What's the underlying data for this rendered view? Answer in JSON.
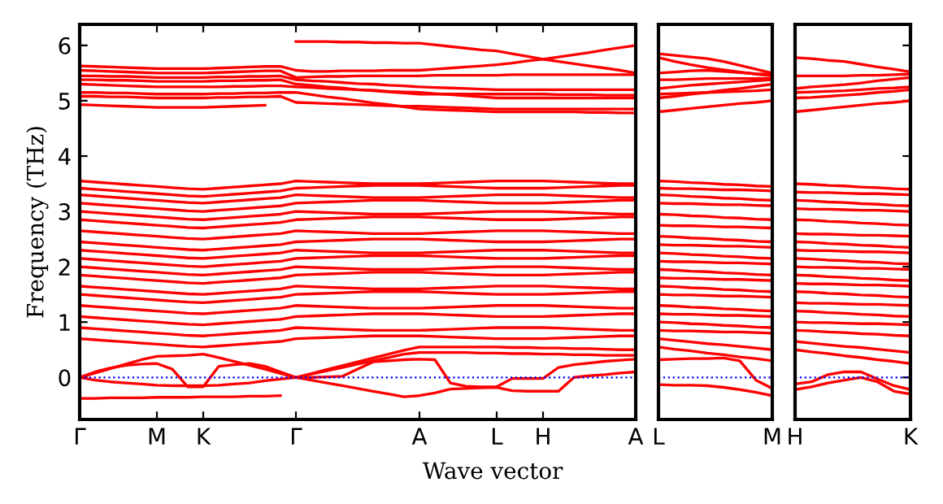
{
  "chart_data": [
    {
      "type": "line",
      "ylabel": "Frequency (THz)",
      "xlabel": "Wave vector",
      "ylim": [
        -0.76,
        6.38
      ],
      "categories": [
        "Γ",
        null,
        null,
        null,
        null,
        "M",
        null,
        null,
        "K",
        null,
        null,
        null,
        null,
        null,
        "Γ",
        null,
        null,
        null,
        null,
        null,
        null,
        null,
        "A",
        null,
        null,
        null,
        null,
        "L",
        null,
        null,
        "H",
        null,
        null,
        null,
        null,
        null,
        "A"
      ],
      "yticks": [
        0,
        1,
        2,
        3,
        4,
        5,
        6
      ],
      "grid": false,
      "legend": false,
      "marker": "none",
      "line_style": "solid",
      "ref_lines": [
        {
          "axis": "y",
          "value": 0,
          "color": "#0000ff",
          "line_style": "dotted"
        }
      ],
      "series": [
        {
          "color": "#ff0000",
          "values": [
            null,
            null,
            null,
            null,
            null,
            null,
            null,
            null,
            null,
            null,
            null,
            null,
            null,
            null,
            6.07,
            6.07,
            6.07,
            6.06,
            6.06,
            6.05,
            6.05,
            6.04,
            6.04,
            6.01,
            5.98,
            5.95,
            5.92,
            5.9,
            5.85,
            5.8,
            5.75,
            5.71,
            5.67,
            5.63,
            5.59,
            5.55,
            5.5
          ]
        },
        {
          "color": "#ff0000",
          "values": [
            5.63,
            5.62,
            5.61,
            5.6,
            5.59,
            5.58,
            5.58,
            5.58,
            5.58,
            5.59,
            5.6,
            5.61,
            5.62,
            5.62,
            5.55,
            5.53,
            5.53,
            5.54,
            5.54,
            5.54,
            5.55,
            5.55,
            5.55,
            5.57,
            5.59,
            5.61,
            5.63,
            5.65,
            5.68,
            5.72,
            5.75,
            5.79,
            5.83,
            5.87,
            5.92,
            5.96,
            6.0
          ]
        },
        {
          "color": "#ff0000",
          "values": [
            5.55,
            5.54,
            5.53,
            5.52,
            5.51,
            5.5,
            5.5,
            5.5,
            5.5,
            5.51,
            5.52,
            5.53,
            5.54,
            5.54,
            5.42,
            5.43,
            5.44,
            5.44,
            5.45,
            5.45,
            5.45,
            5.45,
            5.45,
            5.46,
            5.46,
            5.46,
            5.46,
            5.46,
            5.47,
            5.47,
            5.47,
            5.47,
            5.47,
            5.47,
            5.47,
            5.47,
            5.47
          ]
        },
        {
          "color": "#ff0000",
          "values": [
            5.45,
            5.45,
            5.44,
            5.44,
            5.43,
            5.42,
            5.42,
            5.42,
            5.42,
            5.43,
            5.43,
            5.44,
            5.44,
            5.45,
            5.38,
            5.36,
            5.35,
            5.33,
            5.31,
            5.3,
            5.28,
            5.27,
            5.25,
            5.24,
            5.23,
            5.22,
            5.21,
            5.2,
            5.2,
            5.2,
            5.2,
            5.2,
            5.2,
            5.2,
            5.2,
            5.2,
            5.2
          ]
        },
        {
          "color": "#ff0000",
          "values": [
            5.38,
            5.38,
            5.37,
            5.37,
            5.36,
            5.35,
            5.35,
            5.35,
            5.35,
            5.36,
            5.36,
            5.37,
            5.37,
            5.38,
            5.3,
            5.28,
            5.25,
            5.23,
            5.2,
            5.18,
            5.16,
            5.14,
            5.12,
            5.12,
            5.12,
            5.12,
            5.12,
            5.12,
            5.12,
            5.12,
            5.12,
            5.11,
            5.11,
            5.11,
            5.1,
            5.1,
            5.1
          ]
        },
        {
          "color": "#ff0000",
          "values": [
            5.3,
            5.29,
            5.28,
            5.27,
            5.26,
            5.25,
            5.25,
            5.25,
            5.25,
            5.25,
            5.26,
            5.26,
            5.27,
            5.27,
            5.25,
            5.24,
            5.22,
            5.21,
            5.2,
            5.19,
            5.17,
            5.16,
            5.15,
            5.13,
            5.11,
            5.09,
            5.07,
            5.05,
            5.05,
            5.05,
            5.05,
            5.05,
            5.05,
            5.05,
            5.05,
            5.05,
            5.05
          ]
        },
        {
          "color": "#ff0000",
          "values": [
            5.15,
            5.15,
            5.14,
            5.14,
            5.13,
            5.12,
            5.12,
            5.12,
            5.12,
            5.13,
            5.13,
            5.14,
            5.14,
            5.15,
            5.15,
            5.11,
            5.07,
            5.04,
            5.0,
            4.96,
            4.93,
            4.89,
            4.85,
            4.84,
            4.83,
            4.82,
            4.81,
            4.8,
            4.8,
            4.8,
            4.8,
            4.8,
            4.8,
            4.79,
            4.79,
            4.78,
            4.78
          ]
        },
        {
          "color": "#ff0000",
          "values": [
            5.08,
            5.08,
            5.07,
            5.07,
            5.06,
            5.05,
            5.05,
            5.05,
            5.05,
            5.06,
            5.06,
            5.07,
            5.07,
            5.08,
            4.97,
            4.96,
            4.95,
            4.94,
            4.93,
            4.92,
            4.91,
            4.9,
            4.9,
            4.89,
            4.88,
            4.87,
            4.86,
            4.85,
            4.85,
            4.85,
            4.85,
            4.85,
            4.85,
            4.85,
            4.85,
            4.85,
            4.85
          ]
        },
        {
          "color": "#ff0000",
          "values": [
            4.93,
            4.92,
            4.91,
            4.9,
            4.89,
            4.88,
            4.88,
            4.88,
            4.88,
            4.89,
            4.9,
            4.91,
            4.92,
            null,
            null,
            null,
            null,
            null,
            null,
            null,
            null,
            null,
            null,
            null,
            null,
            null,
            null,
            null,
            null,
            null,
            null,
            null,
            null,
            null,
            null,
            null,
            null
          ]
        },
        {
          "color": "#ff0000",
          "values": [
            3.55,
            3.53,
            3.51,
            3.49,
            3.47,
            3.45,
            3.43,
            3.41,
            3.4,
            3.42,
            3.44,
            3.46,
            3.48,
            3.5,
            3.55,
            3.54,
            3.53,
            3.52,
            3.51,
            3.5,
            3.5,
            3.5,
            3.5,
            3.51,
            3.52,
            3.53,
            3.54,
            3.55,
            3.55,
            3.55,
            3.55,
            3.54,
            3.53,
            3.52,
            3.51,
            3.5,
            3.5
          ]
        },
        {
          "color": "#ff0000",
          "values": [
            3.42,
            3.4,
            3.38,
            3.36,
            3.34,
            3.32,
            3.3,
            3.28,
            3.27,
            3.29,
            3.31,
            3.33,
            3.35,
            3.37,
            3.42,
            3.43,
            3.44,
            3.45,
            3.46,
            3.47,
            3.47,
            3.47,
            3.47,
            3.46,
            3.45,
            3.44,
            3.43,
            3.42,
            3.42,
            3.42,
            3.42,
            3.43,
            3.44,
            3.45,
            3.46,
            3.47,
            3.47
          ]
        },
        {
          "color": "#ff0000",
          "values": [
            3.3,
            3.28,
            3.26,
            3.24,
            3.22,
            3.2,
            3.18,
            3.16,
            3.15,
            3.17,
            3.19,
            3.21,
            3.23,
            3.25,
            3.3,
            3.29,
            3.28,
            3.27,
            3.26,
            3.25,
            3.25,
            3.25,
            3.25,
            3.26,
            3.27,
            3.28,
            3.29,
            3.3,
            3.3,
            3.3,
            3.3,
            3.29,
            3.28,
            3.27,
            3.26,
            3.25,
            3.25
          ]
        },
        {
          "color": "#ff0000",
          "values": [
            3.15,
            3.13,
            3.11,
            3.09,
            3.07,
            3.05,
            3.03,
            3.01,
            3.0,
            3.02,
            3.04,
            3.06,
            3.08,
            3.1,
            3.15,
            3.16,
            3.17,
            3.18,
            3.19,
            3.2,
            3.2,
            3.2,
            3.2,
            3.19,
            3.18,
            3.17,
            3.16,
            3.15,
            3.15,
            3.15,
            3.15,
            3.16,
            3.17,
            3.18,
            3.19,
            3.2,
            3.2
          ]
        },
        {
          "color": "#ff0000",
          "values": [
            3.0,
            2.98,
            2.96,
            2.94,
            2.92,
            2.9,
            2.88,
            2.86,
            2.85,
            2.87,
            2.89,
            2.91,
            2.93,
            2.95,
            3.0,
            2.99,
            2.98,
            2.97,
            2.96,
            2.95,
            2.95,
            2.95,
            2.95,
            2.96,
            2.97,
            2.98,
            2.99,
            3.0,
            3.0,
            3.0,
            3.0,
            2.99,
            2.98,
            2.97,
            2.96,
            2.95,
            2.95
          ]
        },
        {
          "color": "#ff0000",
          "values": [
            2.85,
            2.83,
            2.81,
            2.79,
            2.77,
            2.75,
            2.73,
            2.71,
            2.7,
            2.72,
            2.74,
            2.76,
            2.78,
            2.8,
            2.85,
            2.86,
            2.87,
            2.88,
            2.89,
            2.9,
            2.9,
            2.9,
            2.9,
            2.89,
            2.88,
            2.87,
            2.86,
            2.85,
            2.85,
            2.85,
            2.85,
            2.86,
            2.87,
            2.88,
            2.89,
            2.9,
            2.9
          ]
        },
        {
          "color": "#ff0000",
          "values": [
            2.65,
            2.63,
            2.61,
            2.59,
            2.57,
            2.55,
            2.53,
            2.51,
            2.5,
            2.52,
            2.54,
            2.56,
            2.58,
            2.6,
            2.65,
            2.64,
            2.63,
            2.62,
            2.61,
            2.6,
            2.6,
            2.6,
            2.6,
            2.61,
            2.62,
            2.63,
            2.64,
            2.65,
            2.65,
            2.65,
            2.65,
            2.64,
            2.63,
            2.62,
            2.61,
            2.6,
            2.6
          ]
        },
        {
          "color": "#ff0000",
          "values": [
            2.45,
            2.43,
            2.41,
            2.39,
            2.37,
            2.35,
            2.33,
            2.31,
            2.3,
            2.32,
            2.34,
            2.36,
            2.38,
            2.4,
            2.45,
            2.46,
            2.47,
            2.48,
            2.49,
            2.5,
            2.5,
            2.5,
            2.5,
            2.49,
            2.48,
            2.47,
            2.46,
            2.45,
            2.45,
            2.45,
            2.45,
            2.46,
            2.47,
            2.48,
            2.49,
            2.5,
            2.5
          ]
        },
        {
          "color": "#ff0000",
          "values": [
            2.3,
            2.28,
            2.26,
            2.24,
            2.22,
            2.2,
            2.18,
            2.16,
            2.15,
            2.17,
            2.19,
            2.21,
            2.23,
            2.25,
            2.3,
            2.29,
            2.28,
            2.27,
            2.26,
            2.25,
            2.25,
            2.25,
            2.25,
            2.26,
            2.27,
            2.28,
            2.29,
            2.3,
            2.3,
            2.3,
            2.3,
            2.29,
            2.28,
            2.27,
            2.26,
            2.25,
            2.25
          ]
        },
        {
          "color": "#ff0000",
          "values": [
            2.15,
            2.13,
            2.11,
            2.09,
            2.07,
            2.05,
            2.03,
            2.01,
            2.0,
            2.02,
            2.04,
            2.06,
            2.08,
            2.1,
            2.15,
            2.16,
            2.17,
            2.18,
            2.19,
            2.2,
            2.2,
            2.2,
            2.2,
            2.19,
            2.18,
            2.17,
            2.16,
            2.15,
            2.15,
            2.15,
            2.15,
            2.16,
            2.17,
            2.18,
            2.19,
            2.2,
            2.2
          ]
        },
        {
          "color": "#ff0000",
          "values": [
            2.0,
            1.98,
            1.96,
            1.94,
            1.92,
            1.9,
            1.88,
            1.86,
            1.85,
            1.87,
            1.89,
            1.91,
            1.93,
            1.95,
            2.0,
            1.99,
            1.98,
            1.97,
            1.96,
            1.95,
            1.95,
            1.95,
            1.95,
            1.96,
            1.97,
            1.98,
            1.99,
            2.0,
            2.0,
            2.0,
            2.0,
            1.99,
            1.98,
            1.97,
            1.96,
            1.95,
            1.95
          ]
        },
        {
          "color": "#ff0000",
          "values": [
            1.85,
            1.83,
            1.81,
            1.79,
            1.77,
            1.75,
            1.73,
            1.71,
            1.7,
            1.72,
            1.74,
            1.76,
            1.78,
            1.8,
            1.85,
            1.86,
            1.87,
            1.88,
            1.89,
            1.9,
            1.9,
            1.9,
            1.9,
            1.89,
            1.88,
            1.87,
            1.86,
            1.85,
            1.85,
            1.85,
            1.85,
            1.86,
            1.87,
            1.88,
            1.89,
            1.9,
            1.9
          ]
        },
        {
          "color": "#ff0000",
          "values": [
            1.65,
            1.63,
            1.61,
            1.59,
            1.57,
            1.55,
            1.53,
            1.51,
            1.5,
            1.52,
            1.54,
            1.56,
            1.58,
            1.6,
            1.65,
            1.64,
            1.63,
            1.62,
            1.61,
            1.6,
            1.6,
            1.6,
            1.6,
            1.61,
            1.62,
            1.63,
            1.64,
            1.65,
            1.65,
            1.65,
            1.65,
            1.64,
            1.63,
            1.62,
            1.61,
            1.6,
            1.6
          ]
        },
        {
          "color": "#ff0000",
          "values": [
            1.5,
            1.48,
            1.46,
            1.44,
            1.42,
            1.4,
            1.38,
            1.36,
            1.35,
            1.37,
            1.39,
            1.41,
            1.43,
            1.45,
            1.5,
            1.51,
            1.52,
            1.53,
            1.54,
            1.55,
            1.55,
            1.55,
            1.55,
            1.54,
            1.53,
            1.52,
            1.51,
            1.5,
            1.5,
            1.5,
            1.5,
            1.51,
            1.52,
            1.53,
            1.54,
            1.55,
            1.55
          ]
        },
        {
          "color": "#ff0000",
          "values": [
            1.3,
            1.28,
            1.26,
            1.24,
            1.22,
            1.2,
            1.18,
            1.16,
            1.15,
            1.17,
            1.19,
            1.21,
            1.23,
            1.25,
            1.3,
            1.29,
            1.28,
            1.27,
            1.26,
            1.25,
            1.25,
            1.25,
            1.25,
            1.26,
            1.27,
            1.28,
            1.29,
            1.3,
            1.3,
            1.3,
            1.3,
            1.29,
            1.28,
            1.27,
            1.26,
            1.25,
            1.25
          ]
        },
        {
          "color": "#ff0000",
          "values": [
            1.1,
            1.08,
            1.06,
            1.04,
            1.02,
            1.0,
            0.98,
            0.96,
            0.95,
            0.97,
            0.99,
            1.01,
            1.03,
            1.05,
            1.1,
            1.11,
            1.12,
            1.13,
            1.14,
            1.15,
            1.15,
            1.15,
            1.15,
            1.14,
            1.13,
            1.12,
            1.11,
            1.1,
            1.1,
            1.1,
            1.1,
            1.11,
            1.12,
            1.13,
            1.14,
            1.15,
            1.15
          ]
        },
        {
          "color": "#ff0000",
          "values": [
            0.9,
            0.88,
            0.86,
            0.84,
            0.82,
            0.8,
            0.78,
            0.76,
            0.75,
            0.77,
            0.79,
            0.81,
            0.83,
            0.85,
            0.9,
            0.89,
            0.88,
            0.87,
            0.86,
            0.85,
            0.85,
            0.85,
            0.85,
            0.86,
            0.87,
            0.88,
            0.89,
            0.9,
            0.9,
            0.9,
            0.9,
            0.89,
            0.88,
            0.87,
            0.86,
            0.85,
            0.85
          ]
        },
        {
          "color": "#ff0000",
          "values": [
            0.7,
            0.68,
            0.66,
            0.64,
            0.62,
            0.6,
            0.58,
            0.56,
            0.55,
            0.57,
            0.59,
            0.61,
            0.63,
            0.65,
            0.7,
            0.71,
            0.72,
            0.73,
            0.74,
            0.75,
            0.75,
            0.75,
            0.75,
            0.74,
            0.73,
            0.72,
            0.71,
            0.7,
            0.7,
            0.7,
            0.7,
            0.71,
            0.72,
            0.73,
            0.74,
            0.75,
            0.75
          ]
        },
        {
          "color": "#ff0000",
          "values": [
            0,
            0.1,
            0.17,
            0.22,
            0.24,
            0.25,
            0.15,
            -0.17,
            -0.17,
            0.2,
            0.23,
            0.25,
            0.2,
            0.1,
            0,
            0.0,
            0.01,
            0.02,
            0.15,
            0.28,
            0.3,
            0.32,
            0.33,
            0.32,
            -0.1,
            -0.16,
            -0.17,
            -0.17,
            -0.02,
            -0.02,
            -0.02,
            0.18,
            0.23,
            0.26,
            0.29,
            0.31,
            0.33
          ]
        },
        {
          "color": "#ff0000",
          "values": [
            0,
            -0.05,
            -0.08,
            -0.1,
            -0.12,
            -0.14,
            -0.15,
            -0.15,
            -0.15,
            -0.14,
            -0.12,
            -0.1,
            -0.06,
            -0.03,
            0,
            -0.05,
            -0.1,
            -0.15,
            -0.2,
            -0.25,
            -0.3,
            -0.35,
            -0.33,
            -0.28,
            -0.21,
            -0.2,
            -0.19,
            -0.18,
            -0.24,
            -0.25,
            -0.25,
            -0.25,
            0.0,
            0.03,
            0.05,
            0.08,
            0.1
          ]
        },
        {
          "color": "#ff0000",
          "values": [
            0,
            0.08,
            0.16,
            0.24,
            0.32,
            0.38,
            0.39,
            0.4,
            0.42,
            0.36,
            0.29,
            0.22,
            0.15,
            0.07,
            0,
            0.07,
            0.14,
            0.21,
            0.28,
            0.35,
            0.42,
            0.49,
            0.55,
            0.55,
            0.55,
            0.55,
            0.55,
            0.55,
            0.54,
            0.54,
            0.53,
            0.53,
            0.52,
            0.52,
            0.51,
            0.5,
            0.5
          ]
        },
        {
          "color": "#ff0000",
          "values": [
            -0.38,
            -0.38,
            -0.37,
            -0.37,
            -0.37,
            -0.36,
            -0.36,
            -0.36,
            -0.35,
            -0.35,
            -0.35,
            -0.34,
            -0.34,
            -0.33,
            null,
            null,
            null,
            null,
            null,
            null,
            null,
            null,
            null,
            null,
            null,
            null,
            null,
            null,
            null,
            null,
            null,
            null,
            null,
            null,
            null,
            null,
            null
          ]
        },
        {
          "color": "#ff0000",
          "values": [
            null,
            null,
            null,
            null,
            null,
            null,
            null,
            null,
            null,
            null,
            null,
            null,
            null,
            null,
            0,
            0.06,
            0.12,
            0.18,
            0.24,
            0.3,
            0.36,
            0.42,
            0.45,
            0.45,
            0.45,
            0.45,
            0.44,
            0.44,
            0.43,
            0.43,
            0.42,
            0.42,
            0.41,
            0.41,
            0.4,
            0.4,
            0.4
          ]
        }
      ]
    },
    {
      "type": "line",
      "ylim": [
        -0.76,
        6.38
      ],
      "tick_labels": "x",
      "categories": [
        "L",
        null,
        null,
        null,
        null,
        null,
        null,
        "M"
      ],
      "yticks": [
        0,
        1,
        2,
        3,
        4,
        5,
        6
      ],
      "grid": false,
      "legend": false,
      "marker": "none",
      "line_style": "solid",
      "ref_lines": [
        {
          "axis": "y",
          "value": 0,
          "color": "#0000ff",
          "line_style": "dotted"
        }
      ],
      "series": [
        {
          "color": "#ff0000",
          "values": [
            5.85,
            5.82,
            5.79,
            5.76,
            5.71,
            5.64,
            5.57,
            5.5
          ]
        },
        {
          "color": "#ff0000",
          "values": [
            5.78,
            5.71,
            5.65,
            5.6,
            5.56,
            5.52,
            5.48,
            5.45
          ]
        },
        {
          "color": "#ff0000",
          "values": [
            5.5,
            5.52,
            5.54,
            5.55,
            5.53,
            5.51,
            5.49,
            5.48
          ]
        },
        {
          "color": "#ff0000",
          "values": [
            5.38,
            5.38,
            5.39,
            5.4,
            5.4,
            5.4,
            5.4,
            5.4
          ]
        },
        {
          "color": "#ff0000",
          "values": [
            5.22,
            5.25,
            5.28,
            5.3,
            5.32,
            5.34,
            5.36,
            5.38
          ]
        },
        {
          "color": "#ff0000",
          "values": [
            5.12,
            5.13,
            5.14,
            5.15,
            5.16,
            5.17,
            5.18,
            5.2
          ]
        },
        {
          "color": "#ff0000",
          "values": [
            5.05,
            5.08,
            5.12,
            5.15,
            5.19,
            5.22,
            5.26,
            5.3
          ]
        },
        {
          "color": "#ff0000",
          "values": [
            4.8,
            4.83,
            4.86,
            4.89,
            4.92,
            4.95,
            4.97,
            5.0
          ]
        },
        {
          "color": "#ff0000",
          "values": [
            3.55,
            3.54,
            3.52,
            3.51,
            3.49,
            3.48,
            3.46,
            3.45
          ]
        },
        {
          "color": "#ff0000",
          "values": [
            3.42,
            3.41,
            3.41,
            3.4,
            3.39,
            3.39,
            3.38,
            3.37
          ]
        },
        {
          "color": "#ff0000",
          "values": [
            3.3,
            3.29,
            3.27,
            3.26,
            3.24,
            3.23,
            3.21,
            3.2
          ]
        },
        {
          "color": "#ff0000",
          "values": [
            3.15,
            3.14,
            3.14,
            3.13,
            3.12,
            3.12,
            3.11,
            3.1
          ]
        },
        {
          "color": "#ff0000",
          "values": [
            2.95,
            2.94,
            2.92,
            2.91,
            2.89,
            2.88,
            2.86,
            2.85
          ]
        },
        {
          "color": "#ff0000",
          "values": [
            2.75,
            2.74,
            2.74,
            2.73,
            2.72,
            2.72,
            2.71,
            2.7
          ]
        },
        {
          "color": "#ff0000",
          "values": [
            2.55,
            2.54,
            2.52,
            2.51,
            2.49,
            2.48,
            2.46,
            2.45
          ]
        },
        {
          "color": "#ff0000",
          "values": [
            2.4,
            2.39,
            2.39,
            2.38,
            2.37,
            2.37,
            2.36,
            2.35
          ]
        },
        {
          "color": "#ff0000",
          "values": [
            2.25,
            2.24,
            2.22,
            2.21,
            2.19,
            2.18,
            2.16,
            2.15
          ]
        },
        {
          "color": "#ff0000",
          "values": [
            2.1,
            2.09,
            2.09,
            2.08,
            2.07,
            2.07,
            2.06,
            2.05
          ]
        },
        {
          "color": "#ff0000",
          "values": [
            1.95,
            1.94,
            1.92,
            1.91,
            1.89,
            1.88,
            1.86,
            1.85
          ]
        },
        {
          "color": "#ff0000",
          "values": [
            1.8,
            1.79,
            1.79,
            1.78,
            1.77,
            1.77,
            1.76,
            1.75
          ]
        },
        {
          "color": "#ff0000",
          "values": [
            1.65,
            1.64,
            1.62,
            1.61,
            1.59,
            1.58,
            1.56,
            1.55
          ]
        },
        {
          "color": "#ff0000",
          "values": [
            1.5,
            1.49,
            1.49,
            1.48,
            1.47,
            1.47,
            1.46,
            1.45
          ]
        },
        {
          "color": "#ff0000",
          "values": [
            1.3,
            1.29,
            1.27,
            1.26,
            1.24,
            1.23,
            1.21,
            1.2
          ]
        },
        {
          "color": "#ff0000",
          "values": [
            1.15,
            1.14,
            1.14,
            1.13,
            1.12,
            1.12,
            1.11,
            1.1
          ]
        },
        {
          "color": "#ff0000",
          "values": [
            1.0,
            0.99,
            0.97,
            0.96,
            0.94,
            0.93,
            0.91,
            0.9
          ]
        },
        {
          "color": "#ff0000",
          "values": [
            0.85,
            0.84,
            0.84,
            0.83,
            0.82,
            0.82,
            0.81,
            0.8
          ]
        },
        {
          "color": "#ff0000",
          "values": [
            0.7,
            0.67,
            0.64,
            0.61,
            0.59,
            0.56,
            0.53,
            0.5
          ]
        },
        {
          "color": "#ff0000",
          "values": [
            0.55,
            0.51,
            0.48,
            0.44,
            0.41,
            0.37,
            0.34,
            0.3
          ]
        },
        {
          "color": "#ff0000",
          "values": [
            0.32,
            0.33,
            0.34,
            0.34,
            0.35,
            0.3,
            -0.05,
            -0.2
          ]
        },
        {
          "color": "#ff0000",
          "values": [
            -0.13,
            -0.14,
            -0.14,
            -0.15,
            -0.18,
            -0.22,
            -0.27,
            -0.33
          ]
        }
      ]
    },
    {
      "type": "line",
      "ylim": [
        -0.76,
        6.38
      ],
      "tick_labels": "x",
      "categories": [
        "H",
        null,
        null,
        null,
        null,
        null,
        null,
        "K"
      ],
      "yticks": [
        0,
        1,
        2,
        3,
        4,
        5,
        6
      ],
      "grid": false,
      "legend": false,
      "marker": "none",
      "line_style": "solid",
      "ref_lines": [
        {
          "axis": "y",
          "value": 0,
          "color": "#0000ff",
          "line_style": "dotted"
        }
      ],
      "series": [
        {
          "color": "#ff0000",
          "values": [
            5.78,
            5.76,
            5.73,
            5.71,
            5.66,
            5.61,
            5.57,
            5.52
          ]
        },
        {
          "color": "#ff0000",
          "values": [
            5.45,
            5.45,
            5.45,
            5.45,
            5.46,
            5.46,
            5.47,
            5.48
          ]
        },
        {
          "color": "#ff0000",
          "values": [
            5.22,
            5.25,
            5.27,
            5.29,
            5.32,
            5.36,
            5.39,
            5.42
          ]
        },
        {
          "color": "#ff0000",
          "values": [
            5.15,
            5.16,
            5.17,
            5.18,
            5.2,
            5.22,
            5.23,
            5.25
          ]
        },
        {
          "color": "#ff0000",
          "values": [
            5.05,
            5.06,
            5.08,
            5.1,
            5.12,
            5.15,
            5.17,
            5.2
          ]
        },
        {
          "color": "#ff0000",
          "values": [
            4.8,
            4.83,
            4.86,
            4.89,
            4.92,
            4.95,
            4.97,
            5.0
          ]
        },
        {
          "color": "#ff0000",
          "values": [
            3.5,
            3.49,
            3.47,
            3.46,
            3.44,
            3.43,
            3.41,
            3.4
          ]
        },
        {
          "color": "#ff0000",
          "values": [
            3.35,
            3.34,
            3.34,
            3.33,
            3.32,
            3.32,
            3.31,
            3.3
          ]
        },
        {
          "color": "#ff0000",
          "values": [
            3.2,
            3.19,
            3.17,
            3.16,
            3.14,
            3.13,
            3.11,
            3.1
          ]
        },
        {
          "color": "#ff0000",
          "values": [
            3.05,
            3.04,
            3.04,
            3.03,
            3.02,
            3.02,
            3.01,
            3.0
          ]
        },
        {
          "color": "#ff0000",
          "values": [
            2.85,
            2.84,
            2.82,
            2.81,
            2.79,
            2.78,
            2.76,
            2.75
          ]
        },
        {
          "color": "#ff0000",
          "values": [
            2.6,
            2.59,
            2.59,
            2.58,
            2.57,
            2.57,
            2.56,
            2.55
          ]
        },
        {
          "color": "#ff0000",
          "values": [
            2.45,
            2.44,
            2.42,
            2.41,
            2.39,
            2.38,
            2.36,
            2.35
          ]
        },
        {
          "color": "#ff0000",
          "values": [
            2.3,
            2.29,
            2.29,
            2.28,
            2.27,
            2.27,
            2.26,
            2.25
          ]
        },
        {
          "color": "#ff0000",
          "values": [
            2.15,
            2.14,
            2.12,
            2.11,
            2.09,
            2.08,
            2.06,
            2.05
          ]
        },
        {
          "color": "#ff0000",
          "values": [
            2.0,
            1.99,
            1.99,
            1.98,
            1.97,
            1.97,
            1.96,
            1.95
          ]
        },
        {
          "color": "#ff0000",
          "values": [
            1.85,
            1.84,
            1.82,
            1.81,
            1.79,
            1.78,
            1.76,
            1.75
          ]
        },
        {
          "color": "#ff0000",
          "values": [
            1.7,
            1.69,
            1.69,
            1.68,
            1.67,
            1.67,
            1.66,
            1.65
          ]
        },
        {
          "color": "#ff0000",
          "values": [
            1.55,
            1.54,
            1.52,
            1.51,
            1.49,
            1.48,
            1.46,
            1.45
          ]
        },
        {
          "color": "#ff0000",
          "values": [
            1.35,
            1.34,
            1.34,
            1.33,
            1.32,
            1.32,
            1.31,
            1.3
          ]
        },
        {
          "color": "#ff0000",
          "values": [
            1.2,
            1.19,
            1.17,
            1.16,
            1.14,
            1.13,
            1.11,
            1.1
          ]
        },
        {
          "color": "#ff0000",
          "values": [
            1.0,
            0.99,
            0.99,
            0.98,
            0.97,
            0.97,
            0.96,
            0.95
          ]
        },
        {
          "color": "#ff0000",
          "values": [
            0.85,
            0.84,
            0.82,
            0.81,
            0.79,
            0.78,
            0.76,
            0.75
          ]
        },
        {
          "color": "#ff0000",
          "values": [
            0.65,
            0.62,
            0.59,
            0.56,
            0.54,
            0.51,
            0.48,
            0.45
          ]
        },
        {
          "color": "#ff0000",
          "values": [
            0.5,
            0.46,
            0.43,
            0.39,
            0.36,
            0.32,
            0.29,
            0.25
          ]
        },
        {
          "color": "#ff0000",
          "values": [
            -0.12,
            -0.08,
            0.05,
            0.1,
            0.1,
            -0.03,
            -0.15,
            -0.22
          ]
        },
        {
          "color": "#ff0000",
          "values": [
            -0.22,
            -0.17,
            -0.1,
            -0.05,
            0.0,
            -0.08,
            -0.25,
            -0.3
          ]
        }
      ]
    }
  ]
}
